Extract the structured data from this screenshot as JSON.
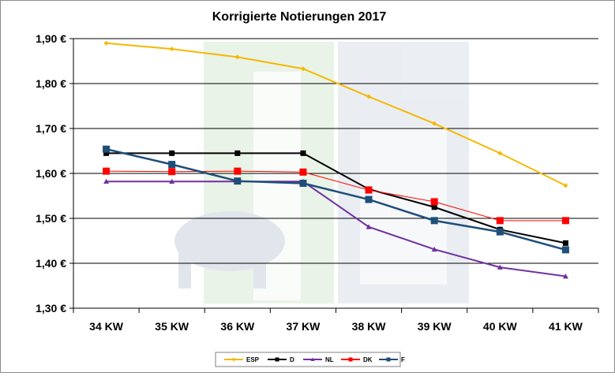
{
  "chart_data": {
    "type": "line",
    "title": "Korrigierte Notierungen 2017",
    "xlabel": "",
    "ylabel": "",
    "categories": [
      "34 KW",
      "35 KW",
      "36 KW",
      "37 KW",
      "38 KW",
      "39 KW",
      "40 KW",
      "41 KW"
    ],
    "ylim": [
      1.3,
      1.9
    ],
    "yticks": [
      1.3,
      1.4,
      1.5,
      1.6,
      1.7,
      1.8,
      1.9
    ],
    "ytick_labels": [
      "1,30 €",
      "1,40 €",
      "1,50 €",
      "1,60 €",
      "1,70 €",
      "1,80 €",
      "1,90 €"
    ],
    "grid": true,
    "legend_position": "bottom",
    "series": [
      {
        "name": "ESP",
        "color": "#f5b800",
        "marker": "diamond",
        "values": [
          1.89,
          1.877,
          1.859,
          1.833,
          1.771,
          1.711,
          1.645,
          1.573
        ]
      },
      {
        "name": "D",
        "color": "#000000",
        "marker": "square",
        "values": [
          1.645,
          1.645,
          1.645,
          1.645,
          1.565,
          1.525,
          1.475,
          1.445
        ]
      },
      {
        "name": "NL",
        "color": "#7030a0",
        "marker": "triangle",
        "values": [
          1.582,
          1.582,
          1.582,
          1.582,
          1.481,
          1.431,
          1.391,
          1.371
        ]
      },
      {
        "name": "DK",
        "color": "#ff0000",
        "marker": "square",
        "values": [
          1.605,
          1.604,
          1.605,
          1.603,
          1.563,
          1.537,
          1.495,
          1.495
        ]
      },
      {
        "name": "F",
        "color": "#1f4e79",
        "marker": "square",
        "values": [
          1.654,
          1.62,
          1.583,
          1.578,
          1.542,
          1.495,
          1.47,
          1.43
        ]
      }
    ]
  }
}
